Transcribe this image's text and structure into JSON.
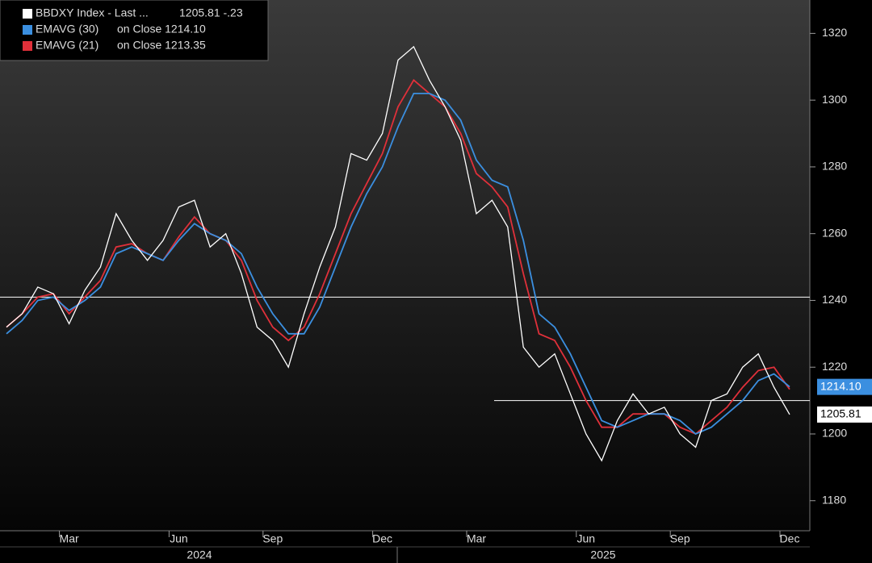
{
  "chart_data": {
    "type": "line",
    "categories": [
      null,
      null,
      null,
      null,
      "Mar",
      null,
      null,
      null,
      null,
      null,
      null,
      "Jun",
      null,
      null,
      null,
      null,
      null,
      "Sep",
      null,
      null,
      null,
      null,
      null,
      null,
      "Dec",
      null,
      null,
      null,
      null,
      null,
      "Mar",
      null,
      null,
      null,
      null,
      null,
      null,
      "Jun",
      null,
      null,
      null,
      null,
      null,
      "Sep",
      null,
      null,
      null,
      null,
      null,
      null,
      "Dec"
    ],
    "x_groups": [
      "2024",
      "2025"
    ],
    "series": [
      {
        "name": "BBDXY Index - Last ...",
        "legend_detail": "1205.81   -.23",
        "last_label": "1205.81",
        "color": "#ffffff",
        "values": [
          1232,
          1236,
          1244,
          1242,
          1233,
          1243,
          1250,
          1266,
          1258,
          1252,
          1258,
          1268,
          1270,
          1256,
          1260,
          1248,
          1232,
          1228,
          1220,
          1236,
          1250,
          1262,
          1284,
          1282,
          1290,
          1312,
          1316,
          1306,
          1298,
          1288,
          1266,
          1270,
          1262,
          1226,
          1220,
          1224,
          1212,
          1200,
          1192,
          1204,
          1212,
          1206,
          1208,
          1200,
          1196,
          1210,
          1212,
          1220,
          1224,
          1214,
          1205.81
        ]
      },
      {
        "name": "EMAVG (30)",
        "legend_detail": "on Close  1214.10",
        "last_label": "1214.10",
        "color": "#3b8fe0",
        "values": [
          1230,
          1234,
          1240,
          1241,
          1237,
          1240,
          1244,
          1254,
          1256,
          1254,
          1252,
          1258,
          1263,
          1260,
          1258,
          1254,
          1244,
          1236,
          1230,
          1230,
          1238,
          1250,
          1262,
          1272,
          1280,
          1292,
          1302,
          1302,
          1300,
          1294,
          1282,
          1276,
          1274,
          1258,
          1236,
          1232,
          1224,
          1214,
          1204,
          1202,
          1204,
          1206,
          1206,
          1204,
          1200,
          1202,
          1206,
          1210,
          1216,
          1218,
          1214.1
        ]
      },
      {
        "name": "EMAVG (21)",
        "legend_detail": "on Close  1213.35",
        "color": "#e0303a",
        "values": [
          1232,
          1236,
          1241,
          1242,
          1236,
          1241,
          1246,
          1256,
          1257,
          1254,
          1252,
          1259,
          1265,
          1260,
          1258,
          1252,
          1240,
          1232,
          1228,
          1232,
          1242,
          1254,
          1266,
          1275,
          1284,
          1298,
          1306,
          1302,
          1298,
          1290,
          1278,
          1274,
          1268,
          1248,
          1230,
          1228,
          1220,
          1210,
          1202,
          1202,
          1206,
          1206,
          1206,
          1202,
          1200,
          1204,
          1208,
          1214,
          1219,
          1220,
          1213.35
        ]
      }
    ],
    "hlines": [
      1241,
      1210
    ],
    "ylim": [
      1171,
      1330
    ],
    "yticks": [
      1180,
      1200,
      1220,
      1240,
      1260,
      1280,
      1300,
      1320
    ]
  }
}
